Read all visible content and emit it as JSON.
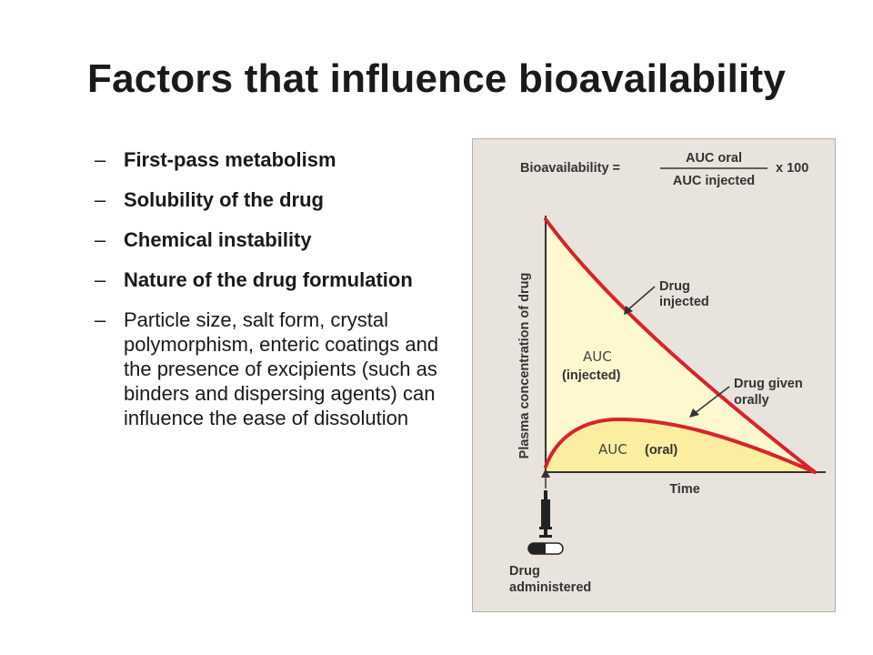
{
  "slide": {
    "title": "Factors that influence bioavailability",
    "bullets": [
      {
        "dash": "–",
        "text": "First-pass metabolism",
        "bold": true
      },
      {
        "dash": "–",
        "text": "Solubility of the drug",
        "bold": true
      },
      {
        "dash": "–",
        "text": "Chemical instability",
        "bold": true
      },
      {
        "dash": "–",
        "text": "Nature of the drug formulation",
        "bold": true
      },
      {
        "dash": "–",
        "text": "Particle size, salt form, crystal polymorphism, enteric coatings and the presence of excipients (such as binders and dispersing agents) can influence the ease of dissolution",
        "bold": false
      }
    ]
  },
  "figure": {
    "formula": {
      "lhs": "Bioavailability =",
      "numerator": "AUC oral",
      "denominator": "AUC injected",
      "multiplier": "x 100"
    },
    "y_axis_label": "Plasma concentration of drug",
    "x_axis_label": "Time",
    "callout_injected_line1": "Drug",
    "callout_injected_line2": "injected",
    "callout_oral_line1": "Drug given",
    "callout_oral_line2": "orally",
    "auc_injected_word": "AUC",
    "auc_injected_paren": "(injected)",
    "auc_oral_word": "AUC",
    "auc_oral_paren": "(oral)",
    "administered_line1": "Drug",
    "administered_line2": "administered",
    "colors": {
      "curve": "#d8232a",
      "fill_injected": "#fdf8d0",
      "fill_oral": "#fbeea0",
      "panel": "#e8e4dd"
    }
  }
}
